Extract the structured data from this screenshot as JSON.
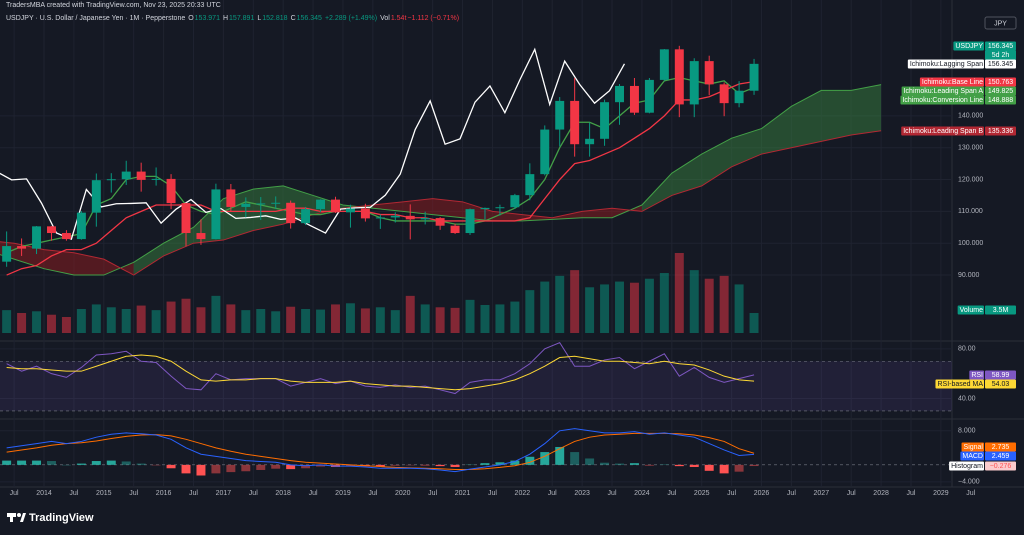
{
  "header": {
    "credit": "TradersMBA created with TradingView.com, Nov 23, 2025 20:33 UTC",
    "description": "USDJPY · U.S. Dollar / Japanese Yen · 1M · Pepperstone",
    "quote": [
      {
        "key": "O",
        "value": "153.971"
      },
      {
        "key": "H",
        "value": "157.891"
      },
      {
        "key": "L",
        "value": "152.818"
      },
      {
        "key": "C",
        "value": "156.345"
      }
    ],
    "change": "+2.289 (+1.49%)",
    "volume_key": "Vol",
    "volume_value": "1.54t",
    "volume_change": "−1.112 (−0.71%)"
  },
  "footer": {
    "logo": "TradingView"
  },
  "chart_data": {
    "type": "candlestick",
    "symbol": "USDJPY",
    "currency": "JPY",
    "countdown": "5d 2h",
    "x": [
      2013.375,
      2013.625,
      2013.875,
      2014.125,
      2014.375,
      2014.625,
      2014.875,
      2015.125,
      2015.375,
      2015.625,
      2015.875,
      2016.125,
      2016.375,
      2016.625,
      2016.875,
      2017.125,
      2017.375,
      2017.625,
      2017.875,
      2018.125,
      2018.375,
      2018.625,
      2018.875,
      2019.125,
      2019.375,
      2019.625,
      2019.875,
      2020.125,
      2020.375,
      2020.625,
      2020.875,
      2021.125,
      2021.375,
      2021.625,
      2021.875,
      2022.125,
      2022.375,
      2022.625,
      2022.875,
      2023.125,
      2023.375,
      2023.625,
      2023.875,
      2024.125,
      2024.375,
      2024.625,
      2024.875,
      2025.125,
      2025.375,
      2025.625,
      2025.875
    ],
    "open": [
      94.2,
      99.1,
      98.3,
      105.3,
      103.2,
      101.3,
      109.6,
      119.8,
      120.1,
      122.5,
      119.9,
      120.2,
      112.6,
      103.2,
      101.3,
      116.9,
      111.4,
      112.4,
      112.5,
      112.7,
      106.3,
      110.7,
      113.7,
      109.7,
      110.9,
      107.8,
      108.1,
      108.6,
      107.5,
      107.9,
      105.5,
      103.2,
      110.7,
      111.1,
      111.3,
      115.1,
      121.7,
      135.7,
      144.7,
      131.1,
      132.8,
      144.3,
      149.4,
      141.0,
      151.3,
      160.9,
      143.6,
      157.2,
      149.9,
      144.0,
      147.9
    ],
    "high": [
      103.7,
      101.5,
      105.4,
      105.4,
      104.1,
      110.1,
      121.9,
      122.0,
      125.9,
      125.3,
      123.8,
      121.7,
      112.7,
      107.5,
      118.7,
      118.6,
      114.4,
      114.5,
      114.7,
      113.4,
      111.4,
      113.8,
      114.6,
      112.1,
      112.4,
      109.0,
      109.7,
      112.2,
      109.9,
      108.2,
      106.1,
      110.9,
      111.2,
      112.1,
      115.5,
      125.1,
      137.0,
      145.9,
      151.9,
      137.9,
      145.1,
      150.0,
      151.9,
      151.9,
      161.0,
      162.0,
      158.1,
      158.9,
      150.5,
      150.9,
      157.9
    ],
    "low": [
      92.6,
      96.0,
      96.6,
      100.8,
      100.8,
      101.1,
      105.2,
      115.9,
      118.3,
      116.2,
      118.1,
      110.7,
      99.0,
      99.5,
      101.2,
      110.1,
      108.1,
      107.3,
      110.8,
      104.6,
      105.7,
      109.8,
      109.5,
      104.9,
      106.8,
      104.5,
      106.5,
      101.2,
      105.9,
      104.2,
      102.9,
      102.6,
      107.5,
      108.7,
      110.8,
      113.5,
      121.3,
      130.4,
      127.2,
      127.2,
      130.6,
      137.2,
      140.3,
      140.8,
      151.0,
      139.6,
      139.6,
      146.5,
      139.9,
      142.7,
      146.6
    ],
    "close": [
      99.1,
      98.3,
      105.3,
      103.2,
      101.3,
      109.6,
      119.8,
      120.1,
      122.5,
      119.9,
      120.2,
      112.6,
      103.2,
      101.3,
      116.9,
      111.4,
      112.4,
      112.5,
      112.7,
      106.3,
      110.7,
      113.7,
      109.7,
      110.9,
      107.8,
      108.1,
      108.6,
      107.5,
      107.9,
      105.5,
      103.2,
      110.7,
      111.1,
      111.3,
      115.1,
      121.7,
      135.7,
      144.7,
      131.1,
      132.8,
      144.3,
      149.4,
      141.0,
      151.3,
      160.9,
      143.6,
      157.2,
      149.9,
      144.0,
      147.9,
      156.345
    ],
    "colors": {
      "up": "#089981",
      "down": "#f23645"
    },
    "xlim": [
      2013.264,
      2030.39
    ],
    "xticks": [
      {
        "value": 2013.5,
        "label": "Jul"
      },
      2014,
      {
        "value": 2014.5,
        "label": "Jul"
      },
      2015,
      {
        "value": 2015.5,
        "label": "Jul"
      },
      2016,
      {
        "value": 2016.5,
        "label": "Jul"
      },
      2017,
      {
        "value": 2017.5,
        "label": "Jul"
      },
      2018,
      {
        "value": 2018.5,
        "label": "Jul"
      },
      2019,
      {
        "value": 2019.5,
        "label": "Jul"
      },
      2020,
      {
        "value": 2020.5,
        "label": "Jul"
      },
      2021,
      {
        "value": 2021.5,
        "label": "Jul"
      },
      2022,
      {
        "value": 2022.5,
        "label": "Jul"
      },
      2023,
      {
        "value": 2023.5,
        "label": "Jul"
      },
      2024,
      {
        "value": 2024.5,
        "label": "Jul"
      },
      2025,
      {
        "value": 2025.5,
        "label": "Jul"
      },
      2026,
      {
        "value": 2026.5,
        "label": "Jul"
      },
      2027,
      {
        "value": 2027.5,
        "label": "Jul"
      },
      2028,
      {
        "value": 2028.5,
        "label": "Jul"
      },
      2029,
      {
        "value": 2029.5,
        "label": "Jul"
      }
    ],
    "ylim": [
      69.6,
      172
    ],
    "yticks": [
      {
        "value": 90,
        "label": "90.000"
      },
      {
        "value": 100,
        "label": "100.000"
      },
      {
        "value": 110,
        "label": "110.000"
      },
      {
        "value": 120,
        "label": "120.000"
      },
      {
        "value": 130,
        "label": "130.000"
      },
      {
        "value": 140,
        "label": "140.000"
      }
    ],
    "grid": true,
    "series": [
      {
        "name": "Ichimoku:Conversion Line",
        "color": "#43a047",
        "values": [
          97,
          99,
          100,
          101,
          102,
          103,
          112,
          114,
          120,
          121,
          121,
          118,
          112,
          110,
          109,
          111,
          113,
          112,
          111,
          110,
          109,
          109,
          110,
          110,
          110,
          108,
          107,
          107,
          107,
          107,
          106,
          106,
          107,
          109,
          111,
          114,
          120,
          130,
          138,
          138,
          136,
          140,
          144,
          145,
          151,
          152,
          151,
          150,
          151,
          147,
          148.888
        ]
      },
      {
        "name": "Ichimoku:Base Line",
        "color": "#f23645",
        "values": [
          90,
          92,
          93,
          96,
          98,
          98,
          100,
          104,
          108,
          110,
          112,
          112,
          112,
          112,
          110,
          110,
          110,
          110,
          110,
          111,
          111,
          110,
          110,
          110,
          110,
          109,
          109,
          108,
          108,
          107,
          107,
          107,
          107,
          107,
          107,
          108,
          114,
          120,
          125,
          126,
          128,
          130,
          133,
          136,
          140,
          145,
          145,
          146,
          148,
          150,
          150.763
        ]
      },
      {
        "name": "Ichimoku:Lagging Span",
        "color": "#ffffff",
        "x": [
          2012.958,
          2013.208,
          2013.458,
          2013.708,
          2013.958,
          2014.208,
          2014.458,
          2014.708,
          2014.958,
          2015.208,
          2015.458,
          2015.708,
          2015.958,
          2016.208,
          2016.458,
          2016.708,
          2016.958,
          2017.208,
          2017.458,
          2017.708,
          2017.958,
          2018.208,
          2018.458,
          2018.708,
          2018.958,
          2019.208,
          2019.458,
          2019.708,
          2019.958,
          2020.208,
          2020.458,
          2020.708,
          2020.958,
          2021.208,
          2021.458,
          2021.708,
          2021.958,
          2022.208,
          2022.458,
          2022.708,
          2022.958,
          2023.208,
          2023.458,
          2023.708
        ],
        "values": [
          120.1,
          122.5,
          119.9,
          120.2,
          112.6,
          103.2,
          101.3,
          116.9,
          111.4,
          112.4,
          112.5,
          112.7,
          106.3,
          110.7,
          113.7,
          109.7,
          110.9,
          107.8,
          108.1,
          108.6,
          107.5,
          107.9,
          105.5,
          103.2,
          110.7,
          111.1,
          111.3,
          115.1,
          121.7,
          135.7,
          144.7,
          131.1,
          132.8,
          144.3,
          149.4,
          141.0,
          151.3,
          160.9,
          143.6,
          157.2,
          149.9,
          144.0,
          147.9,
          156.345
        ]
      }
    ],
    "cloud": {
      "x": [
        2013,
        2013.5,
        2014,
        2014.5,
        2015,
        2015.5,
        2016,
        2016.5,
        2017,
        2017.5,
        2018,
        2018.5,
        2019,
        2019.5,
        2020,
        2020.5,
        2021,
        2021.5,
        2022,
        2022.5,
        2023,
        2023.5,
        2024,
        2024.5,
        2025,
        2025.5,
        2026,
        2026.5,
        2027,
        2027.5,
        2028
      ],
      "fill_up": "rgba(67,160,71,0.38)",
      "fill_down": "rgba(183,28,28,0.38)",
      "series": [
        {
          "name": "Ichimoku:Leading Span A",
          "color": "#43a047",
          "values": [
            98,
            95,
            92,
            90,
            90,
            94,
            100,
            105,
            114,
            117,
            118,
            115,
            112,
            111,
            110,
            109,
            108,
            107,
            107,
            107.5,
            108,
            108,
            112,
            122,
            128,
            133,
            136,
            143,
            148,
            148,
            149.825
          ]
        },
        {
          "name": "Ichimoku:Leading Span B",
          "color": "#b22833",
          "values": [
            101,
            100,
            98,
            97,
            95,
            90,
            96,
            100,
            101,
            104,
            106,
            109,
            111,
            112,
            113,
            114,
            113,
            110,
            109,
            108,
            110,
            111,
            110,
            115,
            118,
            124,
            128,
            130,
            132,
            134,
            135.336
          ]
        }
      ]
    },
    "volume": {
      "name": "Volume",
      "value_label": "3.5M",
      "values": [
        4,
        3.5,
        3.8,
        3.2,
        2.8,
        4.2,
        5,
        4.5,
        4.2,
        4.8,
        4,
        5.5,
        6,
        4.5,
        6.5,
        5,
        4,
        4.2,
        3.8,
        4.6,
        4.2,
        4.1,
        5,
        5.2,
        4.3,
        4.5,
        4,
        6.5,
        5,
        4.5,
        4.4,
        5.8,
        4.9,
        5,
        5.5,
        7.5,
        9,
        10,
        11,
        8,
        8.5,
        9,
        8.8,
        9.5,
        10.5,
        14,
        11,
        9.5,
        10,
        8.5,
        3.5
      ]
    },
    "rsi": {
      "ylim": [
        24.3,
        85.5
      ],
      "yticks": [
        {
          "value": 80,
          "label": "80.00"
        },
        {
          "value": 40,
          "label": "40.00"
        }
      ],
      "band": [
        30,
        70
      ],
      "series": [
        {
          "name": "RSI",
          "color": "#7e57c2",
          "values": [
            68,
            62,
            66,
            60,
            57,
            65,
            75,
            76,
            78,
            70,
            69,
            58,
            48,
            47,
            60,
            55,
            56,
            56,
            56,
            50,
            53,
            56,
            52,
            54,
            50,
            49,
            51,
            49,
            50,
            47,
            44,
            53,
            55,
            55,
            60,
            68,
            80,
            85,
            66,
            66,
            71,
            73,
            64,
            70,
            76,
            58,
            65,
            57,
            53,
            56,
            58.99
          ]
        },
        {
          "name": "RSI-based MA",
          "color": "#fdd835",
          "values": [
            65,
            64,
            64,
            63,
            62,
            62,
            66,
            70,
            74,
            75,
            74,
            70,
            62,
            55,
            54,
            55,
            55,
            56,
            56,
            54,
            53,
            53,
            53,
            54,
            52,
            51,
            50,
            50,
            49,
            48,
            47,
            48,
            50,
            52,
            55,
            60,
            66,
            73,
            74,
            72,
            70,
            70,
            69,
            68,
            70,
            68,
            67,
            63,
            58,
            55,
            54.03
          ]
        }
      ]
    },
    "macd": {
      "ylim": [
        -5.2,
        10.3
      ],
      "yticks": [
        {
          "value": 8,
          "label": "8.000"
        },
        {
          "value": -4,
          "label": "−4.000"
        }
      ],
      "series": [
        {
          "name": "Signal",
          "color": "#ff6d00",
          "values": [
            3,
            3.5,
            4,
            4.6,
            5,
            5.2,
            5.6,
            6.2,
            6.7,
            7,
            7.1,
            6.8,
            6,
            5,
            4,
            3.2,
            2.5,
            2,
            1.5,
            1,
            0.6,
            0.4,
            0.2,
            0,
            -0.2,
            -0.4,
            -0.6,
            -0.7,
            -0.8,
            -0.9,
            -1.1,
            -1.1,
            -0.9,
            -0.6,
            -0.2,
            0.6,
            2,
            3.8,
            5.5,
            6.5,
            7,
            7.2,
            7.4,
            7.4,
            7.4,
            7.3,
            7,
            6.4,
            5.5,
            3.8,
            2.735
          ]
        },
        {
          "name": "MACD",
          "color": "#2962ff",
          "values": [
            4,
            4.5,
            5,
            5.5,
            5,
            5.5,
            6.5,
            7.2,
            7.5,
            7.3,
            7,
            6,
            4,
            2.5,
            2,
            1.5,
            1,
            0.8,
            0.6,
            0,
            -0.2,
            0,
            -0.3,
            -0.3,
            -0.5,
            -0.8,
            -0.8,
            -0.8,
            -0.9,
            -1.2,
            -1.6,
            -1,
            -0.5,
            0,
            0.8,
            2.5,
            5,
            8,
            8.5,
            8,
            7.5,
            7.5,
            7.8,
            7.2,
            7.5,
            7,
            6.5,
            5,
            3.5,
            2.2,
            2.459
          ]
        }
      ],
      "histogram": {
        "name": "Histogram",
        "value_label": "−0.276",
        "color_up": "#26a69a",
        "color_down": "#ff5252",
        "values": [
          1,
          1,
          1,
          0.9,
          0,
          0.3,
          0.9,
          1,
          0.8,
          0.3,
          -0.1,
          -0.8,
          -2,
          -2.5,
          -2,
          -1.7,
          -1.5,
          -1.2,
          -0.9,
          -1,
          -0.8,
          -0.4,
          -0.5,
          -0.3,
          -0.3,
          -0.4,
          -0.2,
          -0.1,
          -0.1,
          -0.3,
          -0.5,
          0.1,
          0.4,
          0.6,
          1,
          1.9,
          3,
          4.2,
          3,
          1.5,
          0.5,
          0.3,
          0.4,
          -0.2,
          0.1,
          -0.3,
          -0.5,
          -1.4,
          -2,
          -1.6,
          -0.276
        ]
      }
    }
  }
}
